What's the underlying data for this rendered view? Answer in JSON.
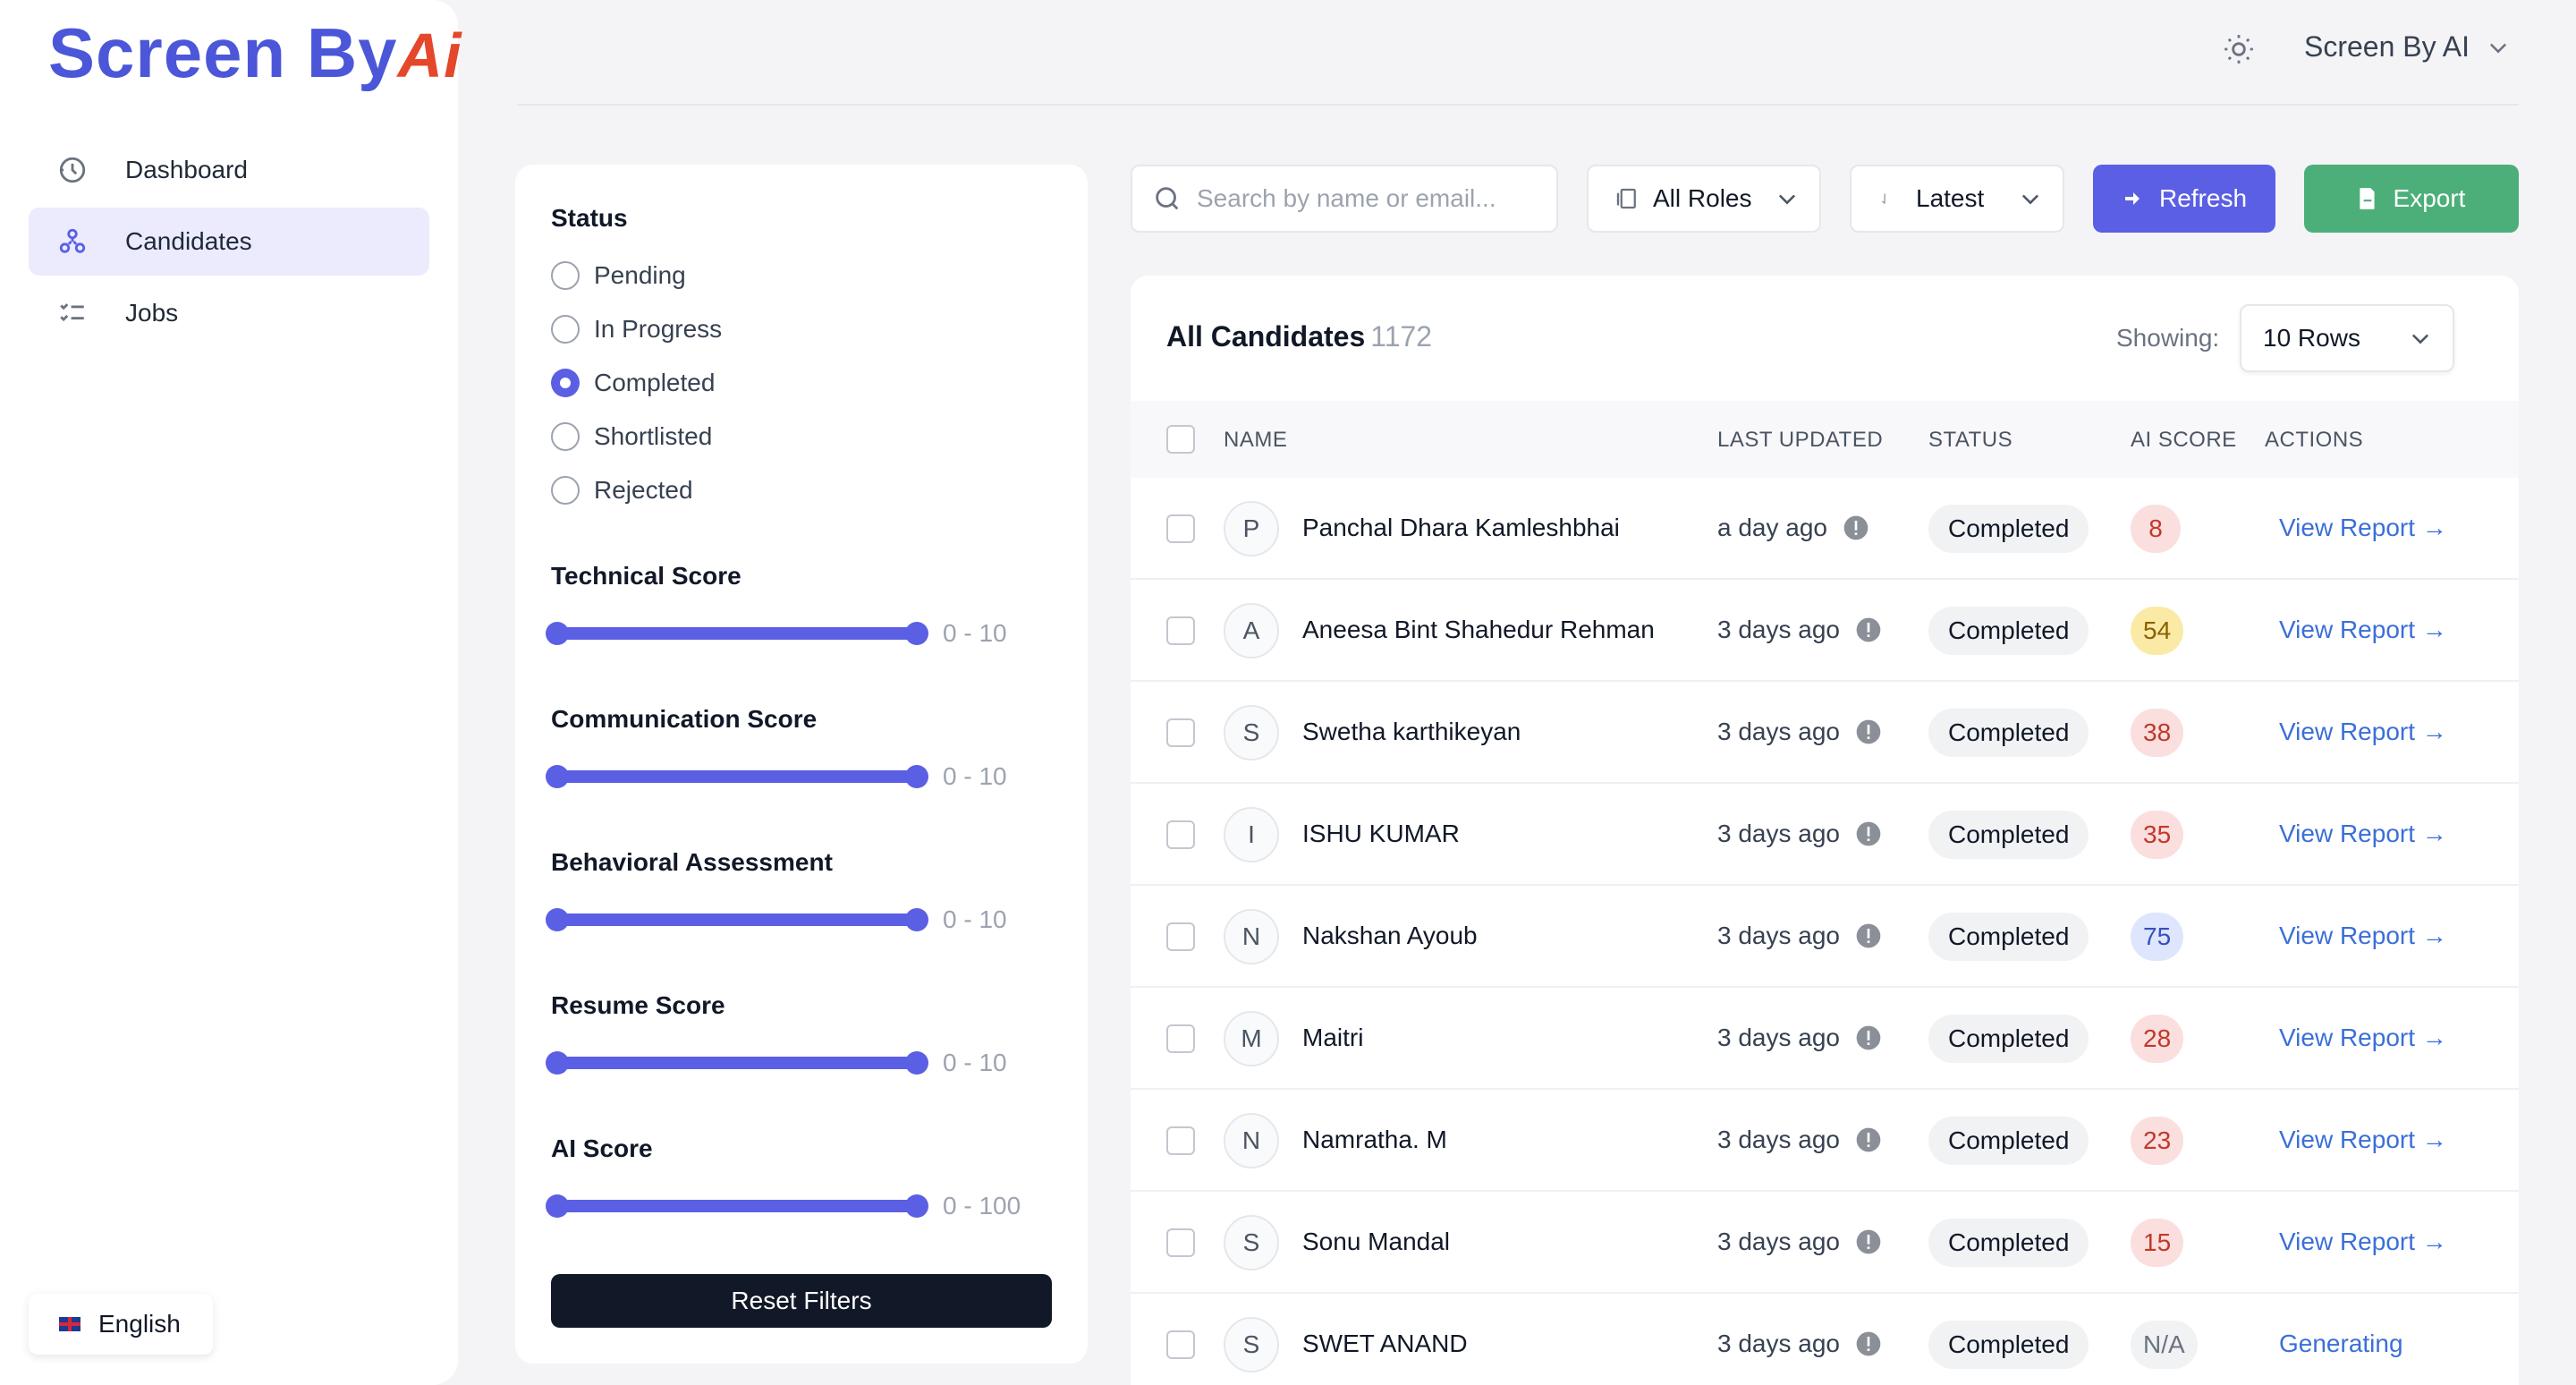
{
  "sidebar": {
    "logo_text": "Screen By",
    "logo_ai": "Ai",
    "nav": [
      {
        "label": "Dashboard",
        "icon": "dashboard-icon",
        "active": false
      },
      {
        "label": "Candidates",
        "icon": "candidates-icon",
        "active": true
      },
      {
        "label": "Jobs",
        "icon": "jobs-icon",
        "active": false
      }
    ],
    "language": "English"
  },
  "header": {
    "account_name": "Screen By AI"
  },
  "filters": {
    "status_title": "Status",
    "status_options": [
      "Pending",
      "In Progress",
      "Completed",
      "Shortlisted",
      "Rejected"
    ],
    "status_selected": "Completed",
    "scores": [
      {
        "title": "Technical Score",
        "range": "0 - 10",
        "min": 0,
        "max": 10
      },
      {
        "title": "Communication Score",
        "range": "0 - 10",
        "min": 0,
        "max": 10
      },
      {
        "title": "Behavioral Assessment",
        "range": "0 - 10",
        "min": 0,
        "max": 10
      },
      {
        "title": "Resume Score",
        "range": "0 - 10",
        "min": 0,
        "max": 10
      },
      {
        "title": "AI Score",
        "range": "0 - 100",
        "min": 0,
        "max": 100
      }
    ],
    "reset_label": "Reset Filters"
  },
  "toolbar": {
    "search_placeholder": "Search by name or email...",
    "roles_label": "All Roles",
    "sort_label": "Latest",
    "refresh_label": "Refresh",
    "export_label": "Export"
  },
  "table": {
    "title": "All Candidates",
    "count": "1172",
    "showing_label": "Showing:",
    "rows_option": "10 Rows",
    "columns": {
      "name": "NAME",
      "updated": "LAST UPDATED",
      "status": "STATUS",
      "score": "AI SCORE",
      "actions": "ACTIONS"
    },
    "rows": [
      {
        "initial": "P",
        "name": "Panchal Dhara Kamleshbhai",
        "updated": "a day ago",
        "status": "Completed",
        "score": "8",
        "score_tone": "red",
        "action": "View Report →"
      },
      {
        "initial": "A",
        "name": "Aneesa Bint Shahedur Rehman",
        "updated": "3 days ago",
        "status": "Completed",
        "score": "54",
        "score_tone": "yellow",
        "action": "View Report →"
      },
      {
        "initial": "S",
        "name": "Swetha karthikeyan",
        "updated": "3 days ago",
        "status": "Completed",
        "score": "38",
        "score_tone": "red",
        "action": "View Report →"
      },
      {
        "initial": "I",
        "name": "ISHU KUMAR",
        "updated": "3 days ago",
        "status": "Completed",
        "score": "35",
        "score_tone": "red",
        "action": "View Report →"
      },
      {
        "initial": "N",
        "name": "Nakshan Ayoub",
        "updated": "3 days ago",
        "status": "Completed",
        "score": "75",
        "score_tone": "blue",
        "action": "View Report →"
      },
      {
        "initial": "M",
        "name": "Maitri",
        "updated": "3 days ago",
        "status": "Completed",
        "score": "28",
        "score_tone": "red",
        "action": "View Report →"
      },
      {
        "initial": "N",
        "name": "Namratha. M",
        "updated": "3 days ago",
        "status": "Completed",
        "score": "23",
        "score_tone": "red",
        "action": "View Report →"
      },
      {
        "initial": "S",
        "name": "Sonu Mandal",
        "updated": "3 days ago",
        "status": "Completed",
        "score": "15",
        "score_tone": "red",
        "action": "View Report →"
      },
      {
        "initial": "S",
        "name": "SWET ANAND",
        "updated": "3 days ago",
        "status": "Completed",
        "score": "N/A",
        "score_tone": "na",
        "action": "Generating"
      }
    ]
  },
  "colors": {
    "primary": "#5b5fe4",
    "export": "#4caf7a",
    "link": "#3b6fd8",
    "logo": "#4b57d8",
    "logo_accent": "#e4472a"
  }
}
